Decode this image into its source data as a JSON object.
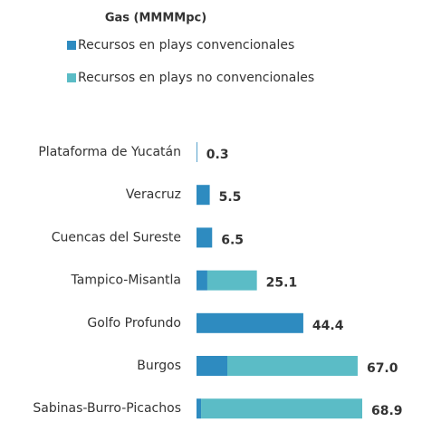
{
  "chart_data": {
    "type": "stacked-barh",
    "title": "Gas (MMMMpc)",
    "categories": [
      "Plataforma de Yucatán",
      "Veracruz",
      "Cuencas del Sureste",
      "Tampico-Misantla",
      "Golfo Profundo",
      "Burgos",
      "Sabinas-Burro-Picachos"
    ],
    "series": [
      {
        "name": "Recursos en plays convencionales",
        "color": "#2e8bc0",
        "values": [
          0.3,
          5.5,
          6.5,
          4.5,
          44.4,
          12.8,
          1.9
        ]
      },
      {
        "name": "Recursos en plays no convencionales",
        "color": "#5bbcc6",
        "values": [
          0,
          0,
          0,
          20.6,
          0,
          54.2,
          67.0
        ]
      }
    ],
    "totals": [
      0.3,
      5.5,
      6.5,
      25.1,
      44.4,
      67.0,
      68.9
    ],
    "total_labels": [
      "0.3",
      "5.5",
      "6.5",
      "25.1",
      "44.4",
      "67.0",
      "68.9"
    ]
  }
}
